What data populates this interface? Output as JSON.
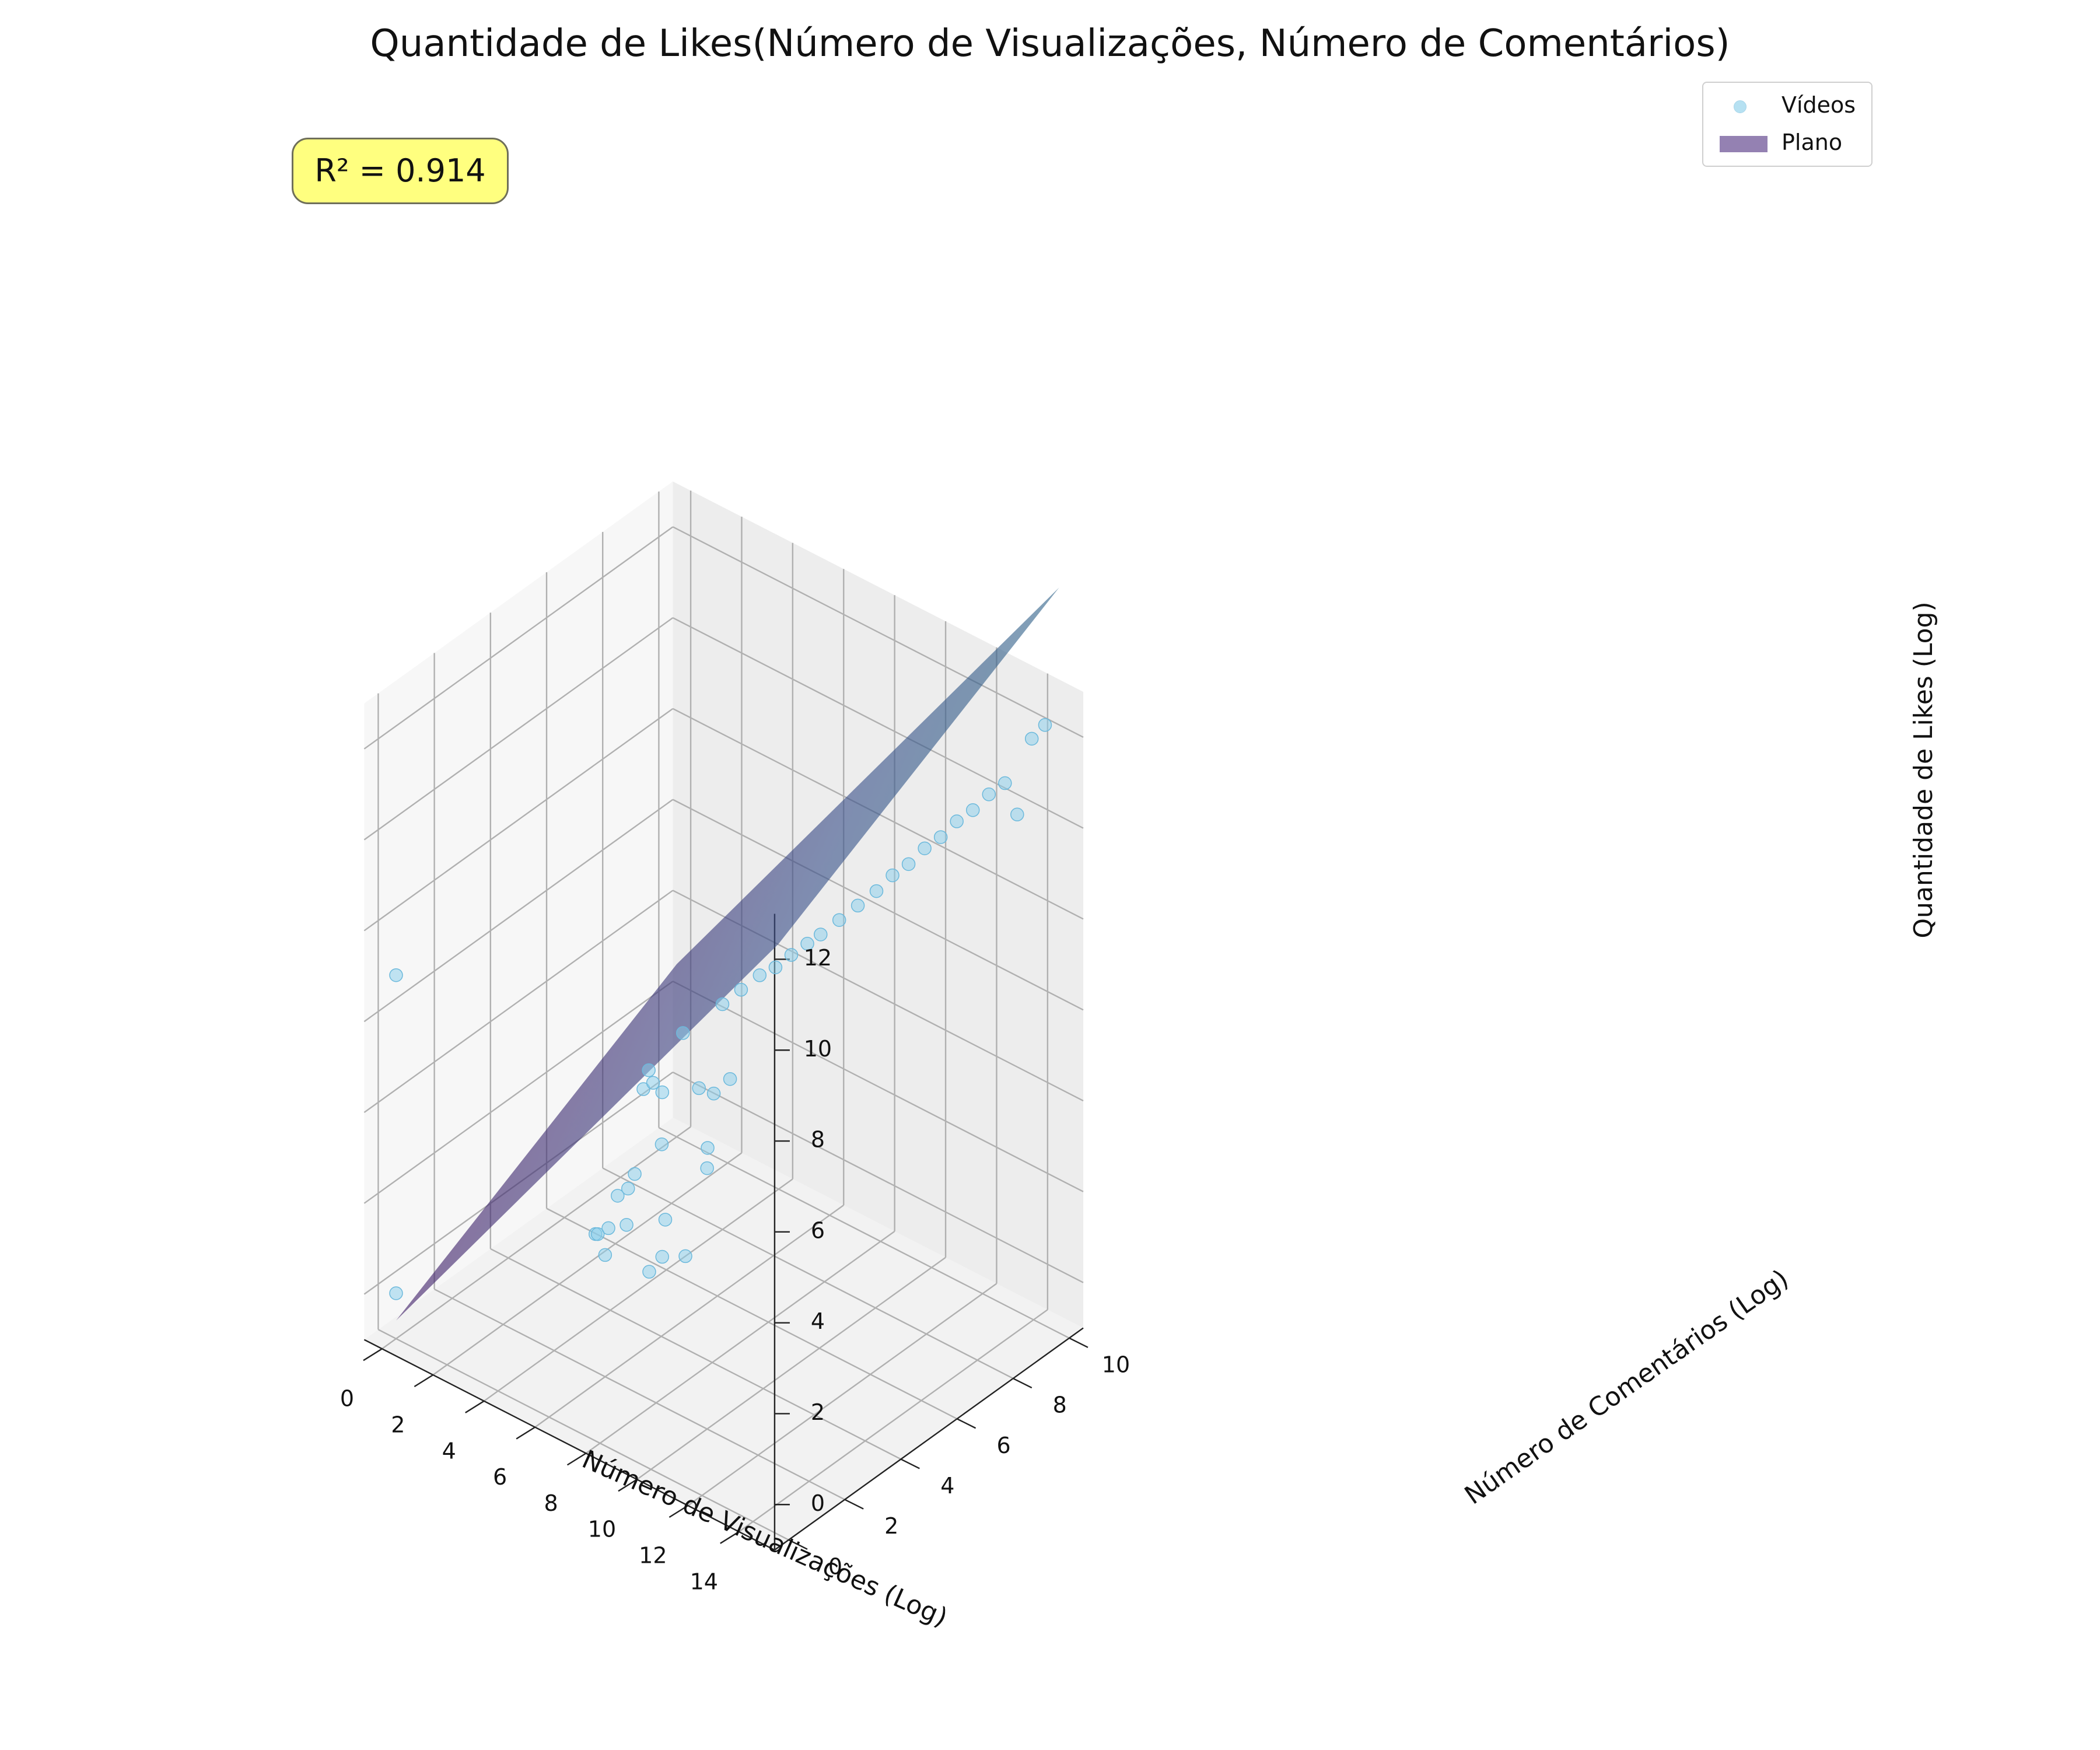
{
  "chart_data": {
    "type": "scatter3d",
    "title": "Quantidade de Likes(Número de Visualizações, Número de Comentários)",
    "xlabel": "Número de Visualizações (Log)",
    "ylabel": "Número de Comentários (Log)",
    "zlabel": "Quantidade de Likes (Log)",
    "x_ticks": [
      "0",
      "2",
      "4",
      "6",
      "8",
      "10",
      "12",
      "14"
    ],
    "y_ticks": [
      "0",
      "2",
      "4",
      "6",
      "8",
      "10"
    ],
    "z_ticks": [
      "0",
      "2",
      "4",
      "6",
      "8",
      "10",
      "12"
    ],
    "xlim": [
      -0.7,
      15.4
    ],
    "ylim": [
      -0.5,
      10.5
    ],
    "zlim": [
      -1,
      13
    ],
    "annotation": "R² = 0.914",
    "legend_position": "top-right",
    "grid": true,
    "colors": {
      "points": "#87ceeb",
      "surface_colormap": "viridis"
    },
    "plane": {
      "x_range": [
        0,
        15.0
      ],
      "y_range": [
        0,
        10.0
      ],
      "corners_z": [
        [
          -0.6,
          2.8
        ],
        [
          12.0,
          15.4
        ]
      ]
    },
    "series": [
      {
        "name": "Vídeos",
        "kind": "scatter",
        "points": [
          [
            0.0,
            0.0,
            7.0
          ],
          [
            0.0,
            0.0,
            0.0
          ],
          [
            7.6,
            0.2,
            3.4
          ],
          [
            7.8,
            0.1,
            3.5
          ],
          [
            8.2,
            0.0,
            3.2
          ],
          [
            8.6,
            0.4,
            3.8
          ],
          [
            8.0,
            0.3,
            3.6
          ],
          [
            9.6,
            0.3,
            3.1
          ],
          [
            10.0,
            0.4,
            3.5
          ],
          [
            9.9,
            0.6,
            4.2
          ],
          [
            10.8,
            0.5,
            3.7
          ],
          [
            10.9,
            1.2,
            5.8
          ],
          [
            11.1,
            1.0,
            5.5
          ],
          [
            6.6,
            1.9,
            3.2
          ],
          [
            6.9,
            2.0,
            3.4
          ],
          [
            7.6,
            1.6,
            4.1
          ],
          [
            8.0,
            2.2,
            4.6
          ],
          [
            6.5,
            3.1,
            5.4
          ],
          [
            6.4,
            3.0,
            5.0
          ],
          [
            7.0,
            2.8,
            5.4
          ],
          [
            7.8,
            2.4,
            5.6
          ],
          [
            8.8,
            2.8,
            5.8
          ],
          [
            9.6,
            2.6,
            6.0
          ],
          [
            9.8,
            3.0,
            6.2
          ],
          [
            7.4,
            3.5,
            6.3
          ],
          [
            8.4,
            4.0,
            7.0
          ],
          [
            8.8,
            4.3,
            7.3
          ],
          [
            9.2,
            4.6,
            7.6
          ],
          [
            9.6,
            4.8,
            7.8
          ],
          [
            10.0,
            5.0,
            8.1
          ],
          [
            10.3,
            5.3,
            8.3
          ],
          [
            10.6,
            5.5,
            8.5
          ],
          [
            11.0,
            5.8,
            8.8
          ],
          [
            11.4,
            6.1,
            9.1
          ],
          [
            11.8,
            6.4,
            9.4
          ],
          [
            12.1,
            6.7,
            9.7
          ],
          [
            12.4,
            7.0,
            9.9
          ],
          [
            12.7,
            7.3,
            10.2
          ],
          [
            13.0,
            7.6,
            10.4
          ],
          [
            13.3,
            7.9,
            10.7
          ],
          [
            13.6,
            8.2,
            10.9
          ],
          [
            13.9,
            8.5,
            11.2
          ],
          [
            14.2,
            8.8,
            11.4
          ],
          [
            14.7,
            9.3,
            12.3
          ],
          [
            15.0,
            9.5,
            12.6
          ],
          [
            14.9,
            8.6,
            11.0
          ]
        ]
      },
      {
        "name": "Plano",
        "kind": "surface"
      }
    ]
  }
}
